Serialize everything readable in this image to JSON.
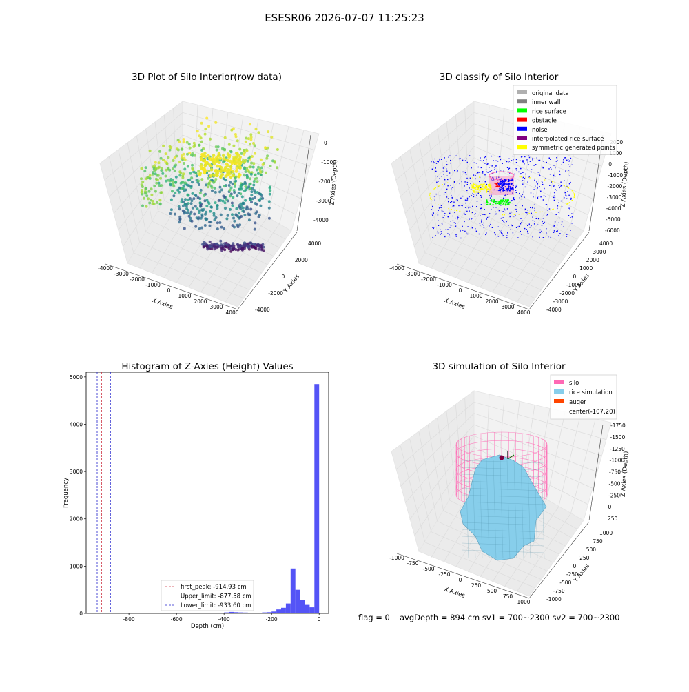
{
  "figure": {
    "suptitle": "ESESR06 2026-07-07 11:25:23",
    "footer": {
      "flag": "flag = 0",
      "stats": "avgDepth = 894 cm  sv1 = 700~2300  sv2 = 700~2300"
    }
  },
  "colors": {
    "pane": "#f2f2f2",
    "hist_bar": "#4b4bf5",
    "first_peak": "#cc3344",
    "limit_line": "#2222cc",
    "silo": "#ff69b4",
    "rice_simulation": "#87ceeb",
    "auger": "#ff4500"
  },
  "chart_data": [
    {
      "id": "raw",
      "type": "scatter",
      "title": "3D Plot of Silo Interior(row data)",
      "xlabel": "X Axies",
      "ylabel": "Y Axies",
      "zlabel": "Z Axies (Depth)",
      "x_ticks": [
        "-4000",
        "-3000",
        "-2000",
        "-1000",
        "0",
        "1000",
        "2000",
        "3000",
        "4000"
      ],
      "y_ticks": [
        "-4000",
        "-2000",
        "0",
        "2000",
        "4000"
      ],
      "z_ticks": [
        "-4000",
        "-3000",
        "-2000",
        "-1000",
        "0"
      ],
      "xlim": [
        -4200,
        4200
      ],
      "ylim": [
        -4200,
        4200
      ],
      "zlim": [
        -4700,
        0
      ],
      "colormap": "viridis",
      "grid": true
    },
    {
      "id": "classify",
      "type": "scatter",
      "title": "3D classify of Silo Interior",
      "xlabel": "X Axies",
      "ylabel": "Y Axies",
      "zlabel": "Z Axies (Depth)",
      "x_ticks": [
        "-4000",
        "-3000",
        "-2000",
        "-1000",
        "0",
        "1000",
        "2000",
        "3000",
        "4000"
      ],
      "y_ticks": [
        "-4000",
        "-3000",
        "-2000",
        "-1000",
        "0",
        "1000",
        "2000",
        "3000",
        "4000"
      ],
      "z_ticks": [
        "-6000",
        "-5000",
        "-4000",
        "-3000",
        "-2000",
        "-1000",
        "0",
        "1000",
        "2000"
      ],
      "xlim": [
        -4200,
        4200
      ],
      "ylim": [
        -4200,
        4200
      ],
      "zlim": [
        -6500,
        2200
      ],
      "legend_position": "top-right",
      "legend": [
        {
          "label": "original data",
          "color": "#b0b0b0"
        },
        {
          "label": "inner wall",
          "color": "#808080"
        },
        {
          "label": "rice surface",
          "color": "#00ff00"
        },
        {
          "label": "obstacle",
          "color": "#ff0000"
        },
        {
          "label": "noise",
          "color": "#0000ff"
        },
        {
          "label": "interpolated rice surface",
          "color": "#800080"
        },
        {
          "label": "symmetric generated points",
          "color": "#ffff00"
        }
      ],
      "grid": true
    },
    {
      "id": "histogram",
      "type": "bar",
      "title": "Histogram of Z-Axies (Height) Values",
      "xlabel": "Depth (cm)",
      "ylabel": "Frequency",
      "xlim": [
        -980,
        40
      ],
      "ylim": [
        0,
        5100
      ],
      "x_ticks": [
        -800,
        -600,
        -400,
        -200,
        0
      ],
      "y_ticks": [
        0,
        1000,
        2000,
        3000,
        4000,
        5000
      ],
      "bin_width": 20,
      "bins": [
        {
          "x": -830,
          "v": 8
        },
        {
          "x": -410,
          "v": 10
        },
        {
          "x": -390,
          "v": 20
        },
        {
          "x": -370,
          "v": 30
        },
        {
          "x": -350,
          "v": 25
        },
        {
          "x": -330,
          "v": 20
        },
        {
          "x": -310,
          "v": 18
        },
        {
          "x": -290,
          "v": 15
        },
        {
          "x": -270,
          "v": 12
        },
        {
          "x": -250,
          "v": 15
        },
        {
          "x": -230,
          "v": 20
        },
        {
          "x": -210,
          "v": 25
        },
        {
          "x": -190,
          "v": 40
        },
        {
          "x": -170,
          "v": 85
        },
        {
          "x": -150,
          "v": 120
        },
        {
          "x": -130,
          "v": 210
        },
        {
          "x": -110,
          "v": 950
        },
        {
          "x": -90,
          "v": 500
        },
        {
          "x": -70,
          "v": 290
        },
        {
          "x": -50,
          "v": 180
        },
        {
          "x": -30,
          "v": 130
        },
        {
          "x": -10,
          "v": 4850
        }
      ],
      "vlines": [
        {
          "x": -914.93,
          "style": "first_peak",
          "label": "first_peak: -914.93 cm"
        },
        {
          "x": -877.58,
          "style": "limit",
          "label": "Upper_limit: -877.58 cm"
        },
        {
          "x": -933.6,
          "style": "limit",
          "label": "Lower_limit: -933.60 cm"
        }
      ],
      "legend_position": "lower-center"
    },
    {
      "id": "simulation",
      "type": "area",
      "title": "3D simulation of Silo Interior",
      "xlabel": "X Axies",
      "ylabel": "Y Axies",
      "zlabel": "Z Axies (Depth)",
      "x_ticks": [
        "-1000",
        "-750",
        "-500",
        "-250",
        "0",
        "250",
        "500",
        "750",
        "1000"
      ],
      "y_ticks": [
        "-1000",
        "-750",
        "-500",
        "-250",
        "0",
        "250",
        "500",
        "750",
        "1000"
      ],
      "z_ticks": [
        "250",
        "0",
        "-250",
        "-500",
        "-750",
        "-1000",
        "-1250",
        "-1500",
        "-1750"
      ],
      "xlim": [
        -1100,
        1100
      ],
      "ylim": [
        -1100,
        1100
      ],
      "zlim": [
        -1900,
        400
      ],
      "legend_position": "top-right",
      "legend": [
        {
          "label": "silo",
          "color": "#ff69b4"
        },
        {
          "label": "rice simulation",
          "color": "#87ceeb"
        },
        {
          "label": "auger",
          "color": "#ff4500"
        },
        {
          "label": "center(-107,20)",
          "color": ""
        }
      ],
      "grid": true
    }
  ]
}
